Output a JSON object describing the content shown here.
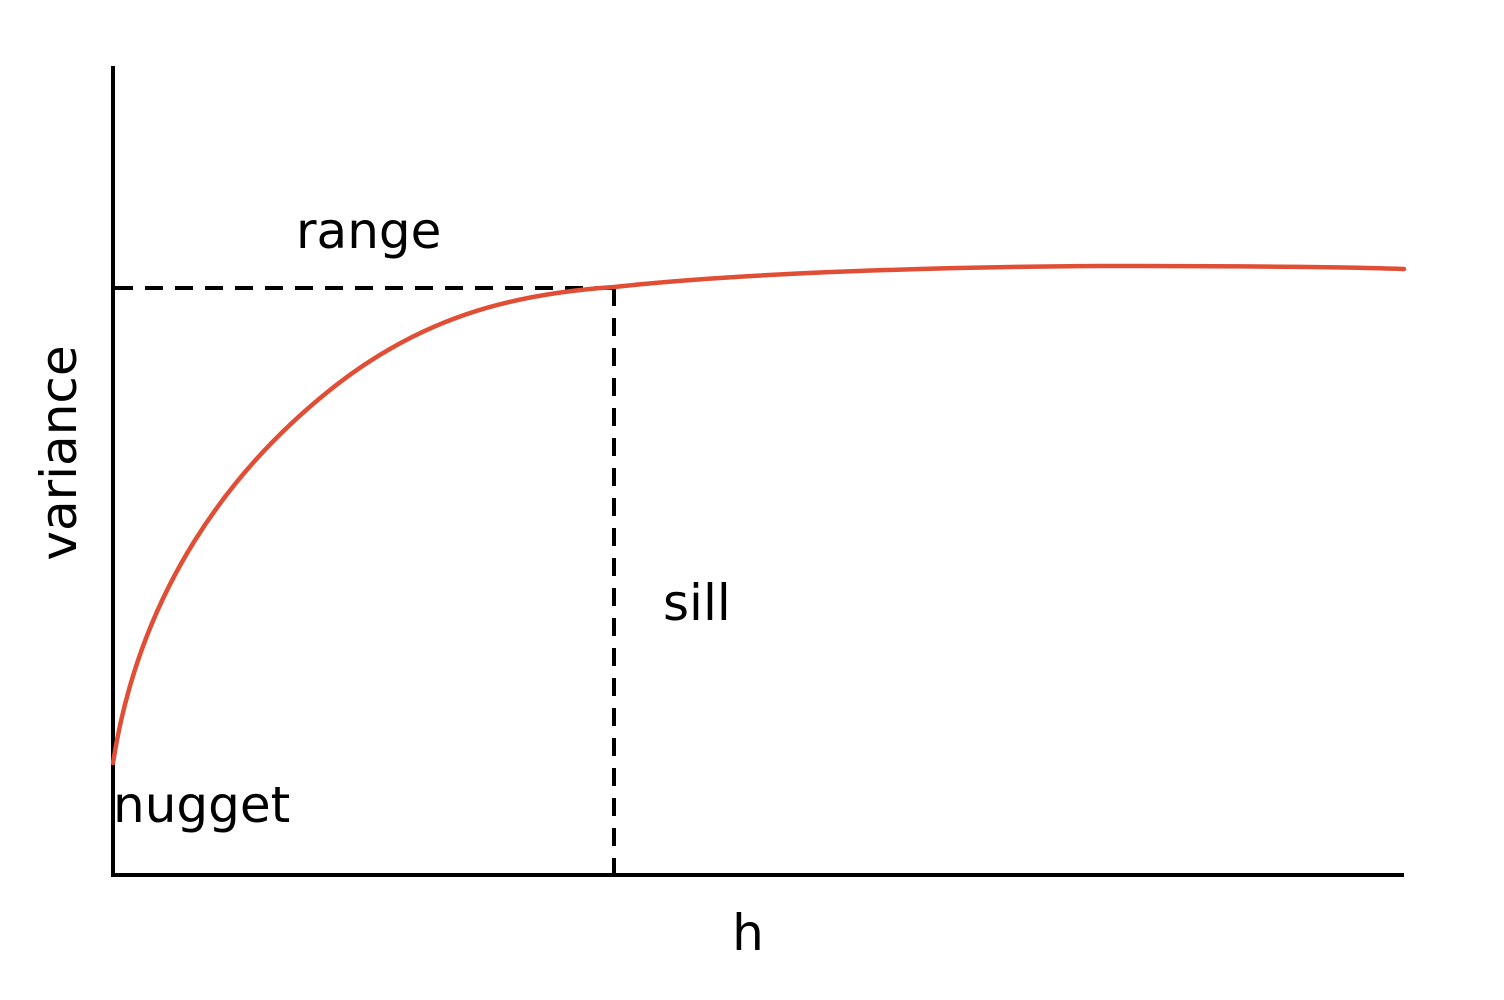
{
  "diagram": {
    "annotations": {
      "range": "range",
      "sill": "sill",
      "nugget": "nugget"
    },
    "axes": {
      "x_label": "h",
      "y_label": "variance"
    },
    "curve": {
      "type": "exponential semivariogram",
      "color": "#e04e35"
    },
    "guide_color": "#000000"
  }
}
